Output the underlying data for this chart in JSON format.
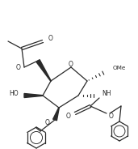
{
  "bg_color": "#ffffff",
  "line_color": "#2a2a2a",
  "lw": 0.9,
  "figsize": [
    1.71,
    1.84
  ],
  "dpi": 100,
  "xlim": [
    0,
    171
  ],
  "ylim": [
    0,
    184
  ]
}
